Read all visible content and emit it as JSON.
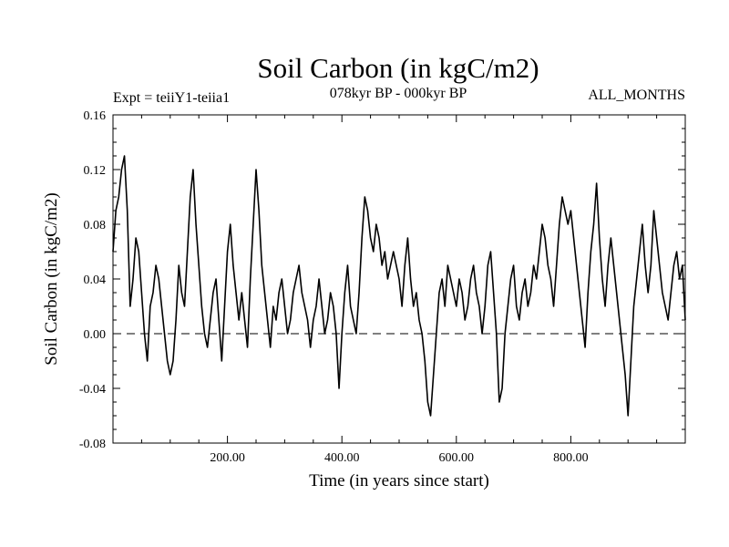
{
  "chart_data": {
    "type": "line",
    "title": "Soil Carbon (in kgC/m2)",
    "subtitle_left": "Expt = teiiY1-teiia1",
    "subtitle_center": "078kyr BP - 000kyr BP",
    "subtitle_right": "ALL_MONTHS",
    "xlabel": "Time (in years since start)",
    "ylabel": "Soil Carbon (in kgC/m2)",
    "xlim": [
      0,
      1000
    ],
    "ylim": [
      -0.08,
      0.16
    ],
    "x_ticks": [
      200,
      400,
      600,
      800
    ],
    "x_tick_labels": [
      "200.00",
      "400.00",
      "600.00",
      "800.00"
    ],
    "y_ticks": [
      -0.08,
      -0.04,
      0.0,
      0.04,
      0.08,
      0.12,
      0.16
    ],
    "y_tick_labels": [
      "-0.08",
      "-0.04",
      "0.00",
      "0.04",
      "0.08",
      "0.12",
      "0.16"
    ],
    "reference_line": {
      "y": 0.0,
      "style": "dashed"
    },
    "grid": false,
    "series": [
      {
        "x": [
          0,
          5,
          10,
          15,
          20,
          25,
          30,
          35,
          40,
          45,
          50,
          55,
          60,
          65,
          70,
          75,
          80,
          85,
          90,
          95,
          100,
          105,
          110,
          115,
          120,
          125,
          130,
          135,
          140,
          145,
          150,
          155,
          160,
          165,
          170,
          175,
          180,
          185,
          190,
          195,
          200,
          205,
          210,
          215,
          220,
          225,
          230,
          235,
          240,
          245,
          250,
          255,
          260,
          265,
          270,
          275,
          280,
          285,
          290,
          295,
          300,
          305,
          310,
          315,
          320,
          325,
          330,
          335,
          340,
          345,
          350,
          355,
          360,
          365,
          370,
          375,
          380,
          385,
          390,
          395,
          400,
          405,
          410,
          415,
          420,
          425,
          430,
          435,
          440,
          445,
          450,
          455,
          460,
          465,
          470,
          475,
          480,
          485,
          490,
          495,
          500,
          505,
          510,
          515,
          520,
          525,
          530,
          535,
          540,
          545,
          550,
          555,
          560,
          565,
          570,
          575,
          580,
          585,
          590,
          595,
          600,
          605,
          610,
          615,
          620,
          625,
          630,
          635,
          640,
          645,
          650,
          655,
          660,
          665,
          670,
          675,
          680,
          685,
          690,
          695,
          700,
          705,
          710,
          715,
          720,
          725,
          730,
          735,
          740,
          745,
          750,
          755,
          760,
          765,
          770,
          775,
          780,
          785,
          790,
          795,
          800,
          805,
          810,
          815,
          820,
          825,
          830,
          835,
          840,
          845,
          850,
          855,
          860,
          865,
          870,
          875,
          880,
          885,
          890,
          895,
          900,
          905,
          910,
          915,
          920,
          925,
          930,
          935,
          940,
          945,
          950,
          955,
          960,
          965,
          970,
          975,
          980,
          985,
          990,
          995,
          1000
        ],
        "values": [
          0.06,
          0.09,
          0.1,
          0.12,
          0.13,
          0.09,
          0.02,
          0.04,
          0.07,
          0.06,
          0.03,
          0.0,
          -0.02,
          0.02,
          0.03,
          0.05,
          0.04,
          0.02,
          0.0,
          -0.02,
          -0.03,
          -0.02,
          0.01,
          0.05,
          0.03,
          0.02,
          0.06,
          0.1,
          0.12,
          0.08,
          0.05,
          0.02,
          0.0,
          -0.01,
          0.01,
          0.03,
          0.04,
          0.01,
          -0.02,
          0.02,
          0.06,
          0.08,
          0.05,
          0.03,
          0.01,
          0.03,
          0.01,
          -0.01,
          0.04,
          0.08,
          0.12,
          0.09,
          0.05,
          0.03,
          0.01,
          -0.01,
          0.02,
          0.01,
          0.03,
          0.04,
          0.02,
          0.0,
          0.01,
          0.03,
          0.04,
          0.05,
          0.03,
          0.02,
          0.01,
          -0.01,
          0.01,
          0.02,
          0.04,
          0.02,
          0.0,
          0.01,
          0.03,
          0.02,
          0.0,
          -0.04,
          0.0,
          0.03,
          0.05,
          0.02,
          0.01,
          0.0,
          0.03,
          0.07,
          0.1,
          0.09,
          0.07,
          0.06,
          0.08,
          0.07,
          0.05,
          0.06,
          0.04,
          0.05,
          0.06,
          0.05,
          0.04,
          0.02,
          0.05,
          0.07,
          0.04,
          0.02,
          0.03,
          0.01,
          0.0,
          -0.02,
          -0.05,
          -0.06,
          -0.03,
          0.0,
          0.03,
          0.04,
          0.02,
          0.05,
          0.04,
          0.03,
          0.02,
          0.04,
          0.03,
          0.01,
          0.02,
          0.04,
          0.05,
          0.03,
          0.02,
          0.0,
          0.02,
          0.05,
          0.06,
          0.03,
          0.0,
          -0.05,
          -0.04,
          0.0,
          0.02,
          0.04,
          0.05,
          0.02,
          0.01,
          0.03,
          0.04,
          0.02,
          0.03,
          0.05,
          0.04,
          0.06,
          0.08,
          0.07,
          0.05,
          0.04,
          0.02,
          0.05,
          0.08,
          0.1,
          0.09,
          0.08,
          0.09,
          0.07,
          0.05,
          0.03,
          0.01,
          -0.01,
          0.03,
          0.06,
          0.08,
          0.11,
          0.07,
          0.04,
          0.02,
          0.05,
          0.07,
          0.05,
          0.03,
          0.01,
          -0.01,
          -0.03,
          -0.06,
          -0.02,
          0.02,
          0.04,
          0.06,
          0.08,
          0.05,
          0.03,
          0.05,
          0.09,
          0.07,
          0.05,
          0.03,
          0.02,
          0.01,
          0.03,
          0.05,
          0.06,
          0.04,
          0.05,
          0.01
        ]
      }
    ]
  },
  "colors": {
    "line": "#000000",
    "axis": "#000000",
    "background": "#ffffff"
  }
}
